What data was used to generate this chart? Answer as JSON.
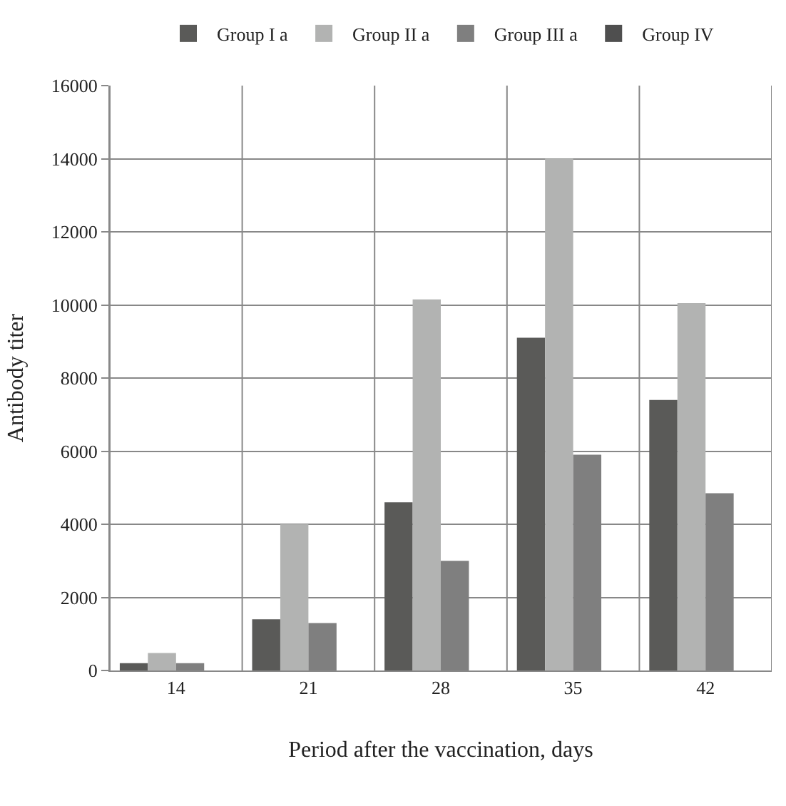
{
  "chart_data": {
    "type": "bar",
    "xlabel": "Period after the vaccination, days",
    "ylabel": "Antibody titer",
    "categories": [
      "14",
      "21",
      "28",
      "35",
      "42"
    ],
    "series": [
      {
        "name": "Group I a",
        "color": "#5a5a58",
        "values": [
          200,
          1400,
          4600,
          9100,
          7400
        ]
      },
      {
        "name": "Group II a",
        "color": "#b2b3b2",
        "values": [
          480,
          4000,
          10150,
          14000,
          10050
        ]
      },
      {
        "name": "Group III a",
        "color": "#7f7f7f",
        "values": [
          200,
          1300,
          3000,
          5900,
          4850
        ]
      },
      {
        "name": "Group IV",
        "color": "#4f4f4f",
        "values": [
          null,
          null,
          null,
          null,
          null
        ]
      }
    ],
    "ylim": [
      0,
      16000
    ],
    "yticks": [
      0,
      2000,
      4000,
      6000,
      8000,
      10000,
      12000,
      14000,
      16000
    ],
    "grid": true,
    "legend": "top"
  }
}
